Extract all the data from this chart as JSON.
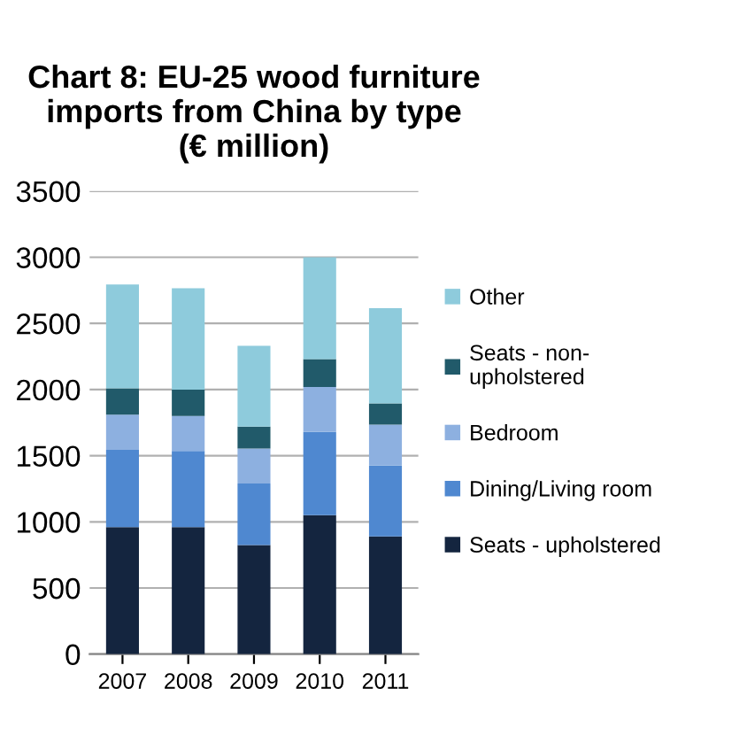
{
  "chart_data": {
    "type": "bar",
    "title": "Chart 8: EU-25 wood furniture\nimports from China by type\n(€ million)",
    "categories": [
      "2007",
      "2008",
      "2009",
      "2010",
      "2011"
    ],
    "stacked": true,
    "ylim": [
      0,
      3500
    ],
    "yticks": [
      0,
      500,
      1000,
      1500,
      2000,
      2500,
      3000,
      3500
    ],
    "grid": "y",
    "legend": "right",
    "series": [
      {
        "name": "Seats - upholstered",
        "color": "#14253f",
        "values": [
          960,
          960,
          825,
          1050,
          890
        ]
      },
      {
        "name": "Dining/Living room",
        "color": "#4f88d0",
        "values": [
          585,
          575,
          465,
          630,
          535
        ]
      },
      {
        "name": "Bedroom",
        "color": "#8db0e0",
        "values": [
          265,
          265,
          265,
          340,
          310
        ]
      },
      {
        "name": "Seats - non-\nupholstered",
        "color": "#215a6a",
        "values": [
          200,
          200,
          165,
          210,
          160
        ]
      },
      {
        "name": "Other",
        "color": "#8ecbdc",
        "values": [
          785,
          765,
          610,
          770,
          720
        ]
      }
    ]
  }
}
